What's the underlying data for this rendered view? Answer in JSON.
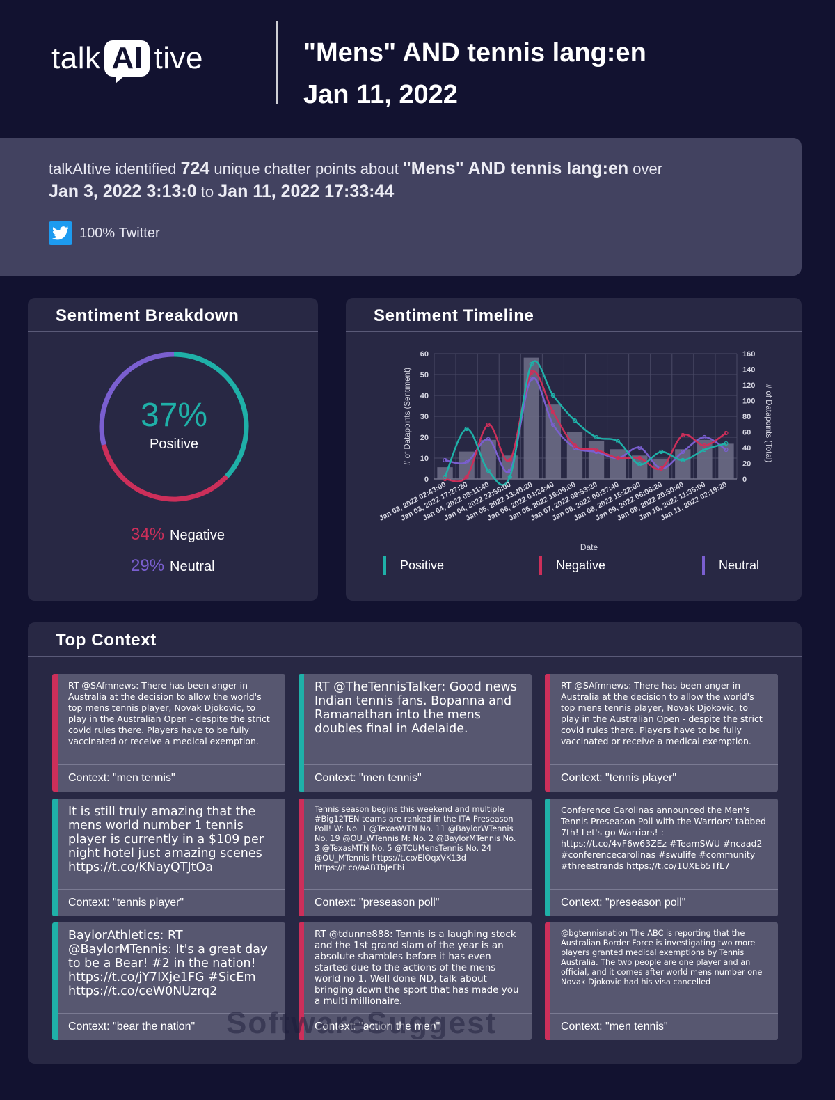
{
  "header": {
    "logo_left": "talk",
    "logo_ai": "AI",
    "logo_right": "tive",
    "query": "\"Mens\" AND tennis lang:en",
    "date": "Jan 11, 2022"
  },
  "summary": {
    "prefix": "talkAItive identified",
    "count": "724",
    "mid": "unique chatter points about",
    "query": "\"Mens\" AND tennis lang:en",
    "over": "over",
    "start": "Jan 3, 2022 3:13:0",
    "to": "to",
    "end": "Jan 11, 2022 17:33:44",
    "source_pct": "100%",
    "source_name": "Twitter"
  },
  "breakdown": {
    "title": "Sentiment Breakdown",
    "center_pct": "37%",
    "center_label": "Positive",
    "negative_pct": "34%",
    "negative_label": "Negative",
    "neutral_pct": "29%",
    "neutral_label": "Neutral",
    "values": {
      "positive": 37,
      "negative": 34,
      "neutral": 29
    }
  },
  "timeline": {
    "title": "Sentiment Timeline",
    "legend": {
      "positive": "Positive",
      "negative": "Negative",
      "neutral": "Neutral"
    }
  },
  "colors": {
    "positive": "#1fb0a8",
    "negative": "#cc2f5a",
    "neutral": "#7a5fd0",
    "bar": "#6e6e88"
  },
  "chart_data": {
    "type": "line",
    "title": "Sentiment Timeline",
    "xlabel": "Date",
    "ylabel": "# of Datapoints (Sentiment)",
    "y2label": "# of Datapoints (Total)",
    "ylim": [
      0,
      60
    ],
    "y2lim": [
      0,
      160
    ],
    "yticks": [
      0,
      10,
      20,
      30,
      40,
      50,
      60
    ],
    "y2ticks": [
      0,
      20,
      40,
      60,
      80,
      100,
      120,
      140,
      160
    ],
    "categories": [
      "Jan 03, 2022 02:43:00",
      "Jan 03, 2022 17:27:20",
      "Jan 04, 2022 08:11:40",
      "Jan 04, 2022 22:56:00",
      "Jan 05, 2022 13:40:20",
      "Jan 06, 2022 04:24:40",
      "Jan 06, 2022 19:09:00",
      "Jan 07, 2022 09:53:20",
      "Jan 08, 2022 00:37:40",
      "Jan 08, 2022 15:22:00",
      "Jan 09, 2022 06:06:20",
      "Jan 09, 2022 20:50:40",
      "Jan 10, 2022 11:35:00",
      "Jan 11, 2022 02:19:20"
    ],
    "series": [
      {
        "name": "Total",
        "kind": "bar",
        "axis": "right",
        "values": [
          15,
          35,
          50,
          30,
          155,
          95,
          60,
          48,
          38,
          30,
          25,
          38,
          50,
          45
        ]
      },
      {
        "name": "Positive",
        "kind": "line",
        "axis": "left",
        "values": [
          1,
          24,
          4,
          1,
          55,
          40,
          28,
          20,
          18,
          7,
          13,
          9,
          14,
          17
        ]
      },
      {
        "name": "Negative",
        "kind": "line",
        "axis": "left",
        "values": [
          0,
          1,
          26,
          9,
          51,
          32,
          16,
          14,
          10,
          10,
          5,
          21,
          16,
          22
        ]
      },
      {
        "name": "Neutral",
        "kind": "line",
        "axis": "left",
        "values": [
          9,
          8,
          19,
          4,
          48,
          26,
          15,
          13,
          10,
          15,
          5,
          13,
          20,
          14
        ]
      }
    ]
  },
  "context": {
    "title": "Top Context",
    "items": [
      {
        "text": "RT @SAfmnews: There has been anger in Australia at the decision to allow the world's top mens tennis player, Novak Djokovic, to play in the Australian Open - despite the strict covid rules there. Players have to be fully vaccinated or receive a medical exemption.",
        "context": "Context: \"men tennis\"",
        "sentiment": "negative",
        "size": "sz-s"
      },
      {
        "text": "RT @TheTennisTalker: Good news Indian tennis fans. Bopanna and Ramanathan into the mens doubles final in Adelaide.",
        "context": "Context: \"men tennis\"",
        "sentiment": "positive",
        "size": "sz-xl"
      },
      {
        "text": "RT @SAfmnews: There has been anger in Australia at the decision to allow the world's top mens tennis player, Novak Djokovic, to play in the Australian Open - despite the strict covid rules there. Players have to be fully vaccinated or receive a medical exemption.",
        "context": "Context: \"tennis player\"",
        "sentiment": "negative",
        "size": "sz-s"
      },
      {
        "text": "It is still truly amazing that the mens world number 1 tennis player is currently in a $109 per night hotel just amazing scenes https://t.co/KNayQTJtOa",
        "context": "Context: \"tennis player\"",
        "sentiment": "positive",
        "size": "sz-xl"
      },
      {
        "text": "Tennis season begins this weekend and multiple #Big12TEN teams are ranked in the ITA Preseason Poll! W: No. 1 @TexasWTN No. 11 @BaylorWTennis No. 19 @OU_WTennis M: No. 2 @BaylorMTennis No. 3 @TexasMTN No. 5 @TCUMensTennis No. 24 @OU_MTennis https://t.co/ElOqxVK13d https://t.co/aABTbJeFbi",
        "context": "Context: \"preseason poll\"",
        "sentiment": "negative",
        "size": "sz-xs"
      },
      {
        "text": "Conference Carolinas announced the Men's Tennis Preseason Poll with the Warriors' tabbed 7th! Let's go Warriors! : https://t.co/4vF6w63ZEz #TeamSWU #ncaad2 #conferencecarolinas #swulife #community #threestrands https://t.co/1UXEb5TfL7",
        "context": "Context: \"preseason poll\"",
        "sentiment": "positive",
        "size": "sz-s"
      },
      {
        "text": "BaylorAthletics: RT @BaylorMTennis: It's a great day to be a Bear! #2 in the nation! https://t.co/jY7IXje1FG #SicEm https://t.co/ceW0NUzrq2",
        "context": "Context: \"bear the nation\"",
        "sentiment": "positive",
        "size": "sz-xl"
      },
      {
        "text": "RT @tdunne888: Tennis is a laughing stock and the 1st grand slam of the year is an absolute shambles before it has even started due to the actions of the mens world no 1. Well done ND, talk about bringing down the sport that has made you a multi millionaire.",
        "context": "Context: \"action the men\"",
        "sentiment": "negative",
        "size": "sz-m"
      },
      {
        "text": "@bgtennisnation The ABC is reporting that the Australian Border Force is investigating two more players granted medical exemptions by Tennis Australia. The two people are one player and an official, and it comes after world mens number one Novak Djokovic had his visa cancelled",
        "context": "Context: \"men tennis\"",
        "sentiment": "negative",
        "size": "sz-xs"
      }
    ]
  }
}
